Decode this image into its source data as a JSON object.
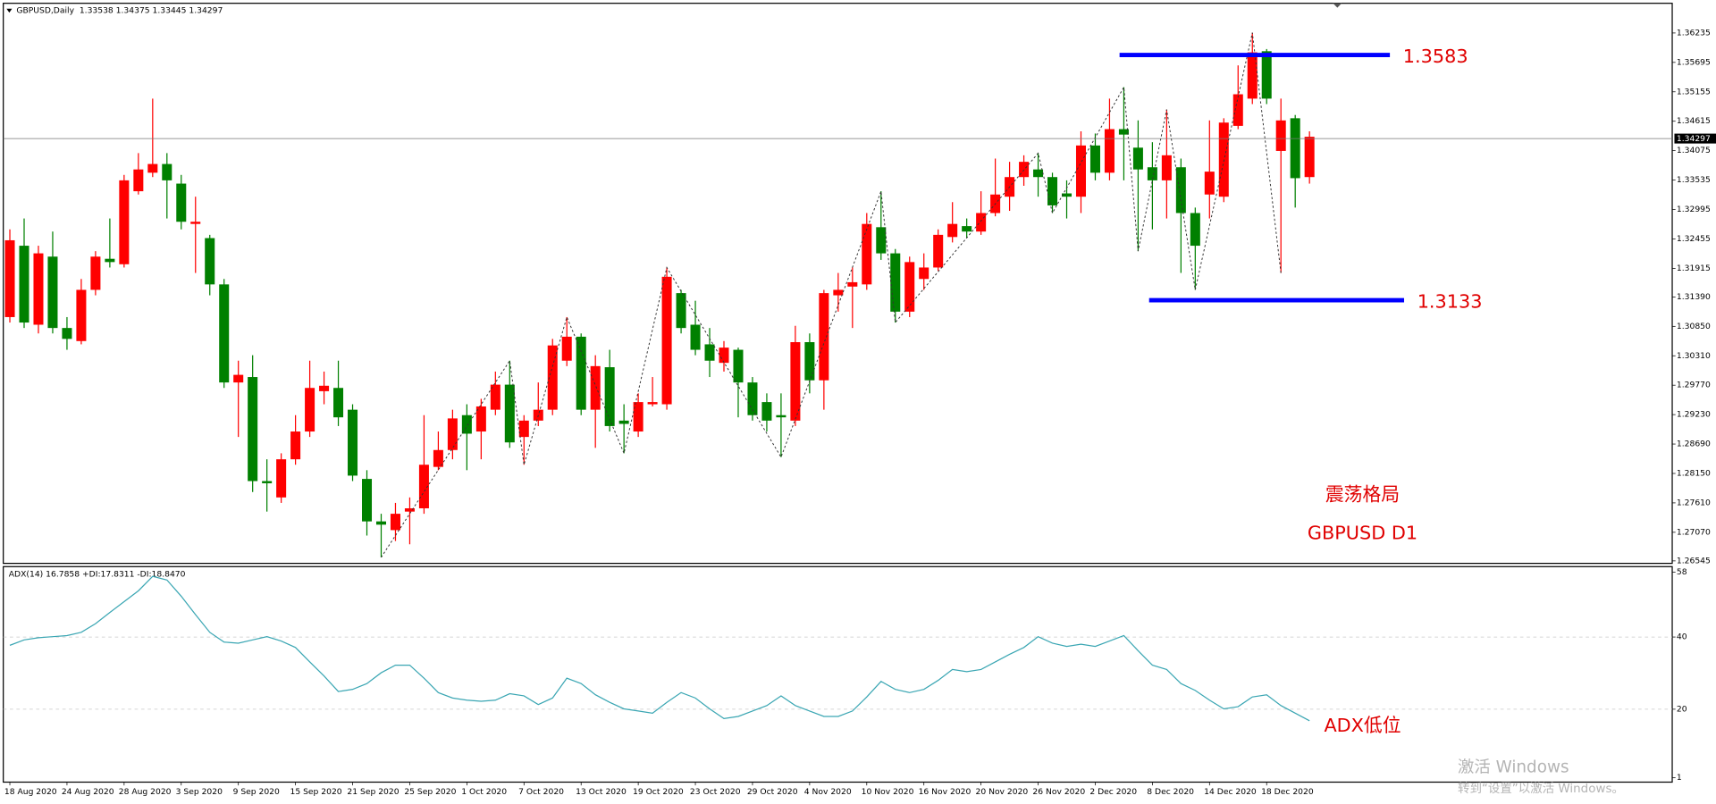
{
  "chart_data": [
    {
      "type": "candlestick",
      "title": "GBPUSD,Daily  1.33538 1.34375 1.33445 1.34297",
      "up_color": "#ff0000",
      "down_color": "#008000",
      "open": [
        1.3102,
        1.3233,
        1.3088,
        1.3213,
        1.3082,
        1.3058,
        1.3152,
        1.3209,
        1.3199,
        1.3333,
        1.3367,
        1.3383,
        1.3347,
        1.3273,
        1.3247,
        1.3162,
        1.2982,
        1.2992,
        1.2801,
        1.2771,
        1.2841,
        1.2892,
        1.2966,
        1.2972,
        1.2932,
        1.2805,
        1.2727,
        1.2711,
        1.2745,
        1.2751,
        1.2827,
        1.2858,
        1.2922,
        1.2892,
        1.2932,
        1.2978,
        1.2882,
        1.2912,
        1.2932,
        1.3022,
        1.3066,
        1.2932,
        1.301,
        1.2912,
        1.2892,
        1.2942,
        1.2942,
        1.3146,
        1.3088,
        1.3052,
        1.3018,
        1.3042,
        1.2982,
        1.2946,
        1.2922,
        1.2912,
        1.3056,
        1.2986,
        1.3142,
        1.3158,
        1.3162,
        1.3267,
        1.3219,
        1.3112,
        1.3172,
        1.3193,
        1.3249,
        1.3269,
        1.3259,
        1.3293,
        1.3323,
        1.3359,
        1.3373,
        1.3359,
        1.3329,
        1.3323,
        1.3417,
        1.3367,
        1.3447,
        1.3413,
        1.3377,
        1.3353,
        1.3377,
        1.3293,
        1.3327,
        1.3323,
        1.3453,
        1.3503,
        1.359,
        1.3407,
        1.3467,
        1.3359
      ],
      "high": [
        1.3263,
        1.3283,
        1.3233,
        1.3259,
        1.3102,
        1.3172,
        1.3223,
        1.3283,
        1.3363,
        1.3403,
        1.3503,
        1.3403,
        1.3363,
        1.3323,
        1.3253,
        1.3172,
        1.3022,
        1.3032,
        1.2841,
        1.2852,
        1.2922,
        1.3022,
        1.3002,
        1.3022,
        1.2942,
        1.2821,
        1.2741,
        1.2761,
        1.2771,
        1.2922,
        1.2892,
        1.2932,
        1.2942,
        1.2952,
        1.3002,
        1.3022,
        1.2922,
        1.2982,
        1.3062,
        1.3102,
        1.3072,
        1.3032,
        1.3042,
        1.2942,
        1.2962,
        1.2992,
        1.3193,
        1.3152,
        1.3132,
        1.3082,
        1.3058,
        1.3046,
        1.2992,
        1.2962,
        1.2962,
        1.3086,
        1.3072,
        1.3152,
        1.3183,
        1.3193,
        1.3293,
        1.3333,
        1.3227,
        1.3213,
        1.3219,
        1.3263,
        1.3313,
        1.3283,
        1.3333,
        1.3393,
        1.3387,
        1.3399,
        1.3403,
        1.3367,
        1.3353,
        1.3443,
        1.3439,
        1.3503,
        1.3524,
        1.3463,
        1.3423,
        1.3483,
        1.3393,
        1.3303,
        1.3463,
        1.3467,
        1.3564,
        1.3624,
        1.3594,
        1.3503,
        1.3473,
        1.3443
      ],
      "low": [
        1.3092,
        1.3082,
        1.3072,
        1.3072,
        1.3042,
        1.3052,
        1.3142,
        1.3193,
        1.3193,
        1.3327,
        1.3359,
        1.3283,
        1.3263,
        1.3183,
        1.3142,
        1.2972,
        1.2882,
        1.2781,
        1.2745,
        1.2761,
        1.2831,
        1.2882,
        1.2942,
        1.2902,
        1.2801,
        1.2701,
        1.2661,
        1.2691,
        1.2685,
        1.2741,
        1.2821,
        1.2841,
        1.2821,
        1.2841,
        1.2922,
        1.2862,
        1.2831,
        1.2902,
        1.2922,
        1.3012,
        1.2922,
        1.2862,
        1.2892,
        1.2852,
        1.2882,
        1.2938,
        1.2932,
        1.3072,
        1.3032,
        1.2992,
        1.3002,
        1.2918,
        1.2912,
        1.2892,
        1.2845,
        1.2902,
        1.2962,
        1.2932,
        1.3112,
        1.3082,
        1.3152,
        1.3207,
        1.3092,
        1.3102,
        1.3152,
        1.3187,
        1.3239,
        1.3247,
        1.3253,
        1.3287,
        1.3297,
        1.3343,
        1.3323,
        1.3293,
        1.3283,
        1.3293,
        1.3353,
        1.3353,
        1.3353,
        1.3223,
        1.3263,
        1.3283,
        1.3183,
        1.3152,
        1.3283,
        1.3313,
        1.3447,
        1.3493,
        1.3493,
        1.3183,
        1.3303,
        1.3347
      ],
      "close": [
        1.3243,
        1.3092,
        1.3219,
        1.3082,
        1.3062,
        1.3152,
        1.3213,
        1.3203,
        1.3353,
        1.3373,
        1.3383,
        1.3353,
        1.3277,
        1.3277,
        1.3162,
        1.2982,
        1.2996,
        1.2801,
        1.2797,
        1.2841,
        1.2892,
        1.2972,
        1.2976,
        1.2918,
        1.2811,
        1.2727,
        1.2721,
        1.2741,
        1.2751,
        1.2831,
        1.2858,
        1.2916,
        1.2888,
        1.2938,
        1.2978,
        1.2872,
        1.2912,
        1.2932,
        1.305,
        1.3066,
        1.2932,
        1.3012,
        1.2902,
        1.2906,
        1.2946,
        1.2946,
        1.3176,
        1.3082,
        1.3042,
        1.3022,
        1.3046,
        1.2982,
        1.2922,
        1.2912,
        1.2918,
        1.3056,
        1.2986,
        1.3146,
        1.3152,
        1.3166,
        1.3273,
        1.3219,
        1.3112,
        1.3203,
        1.3193,
        1.3253,
        1.3273,
        1.3259,
        1.3293,
        1.3327,
        1.3359,
        1.3387,
        1.3359,
        1.3307,
        1.3323,
        1.3417,
        1.3367,
        1.3447,
        1.3437,
        1.3373,
        1.3353,
        1.3399,
        1.3293,
        1.3233,
        1.3369,
        1.3459,
        1.3511,
        1.3588,
        1.3503,
        1.3463,
        1.3357,
        1.3433
      ],
      "last_price": 1.34297,
      "levels": [
        1.3583,
        1.3133
      ],
      "level_color": "#0000ff",
      "annotations": [
        "震荡格局",
        "GBPUSD D1"
      ],
      "ylim": [
        1.265,
        1.3678
      ],
      "yticks": [
        1.36235,
        1.35695,
        1.35155,
        1.34615,
        1.34075,
        1.33535,
        1.32995,
        1.32455,
        1.31915,
        {
          "value": 1.3139,
          "label": "1.31390"
        },
        {
          "value": 1.3085,
          "label": "1.30850"
        },
        {
          "value": 1.3031,
          "label": "1.30310"
        },
        {
          "value": 1.2977,
          "label": "1.29770"
        },
        {
          "value": 1.2923,
          "label": "1.29230"
        },
        {
          "value": 1.2869,
          "label": "1.28690"
        },
        {
          "value": 1.2815,
          "label": "1.28150"
        },
        {
          "value": 1.2761,
          "label": "1.27610"
        },
        {
          "value": 1.2707,
          "label": "1.27070"
        },
        1.26545
      ]
    },
    {
      "type": "line",
      "title": "ADX(14) 16.7858 +DI:17.8311 -DI:18.8470",
      "categories": [
        "18 Aug 2020",
        null,
        null,
        null,
        "24 Aug 2020",
        null,
        null,
        null,
        "28 Aug 2020",
        null,
        null,
        null,
        "3 Sep 2020",
        null,
        null,
        null,
        "9 Sep 2020",
        null,
        null,
        null,
        "15 Sep 2020",
        null,
        null,
        null,
        "21 Sep 2020",
        null,
        null,
        null,
        "25 Sep 2020",
        null,
        null,
        null,
        "1 Oct 2020",
        null,
        null,
        null,
        "7 Oct 2020",
        null,
        null,
        null,
        "13 Oct 2020",
        null,
        null,
        null,
        "19 Oct 2020",
        null,
        null,
        null,
        "23 Oct 2020",
        null,
        null,
        null,
        "29 Oct 2020",
        null,
        null,
        null,
        "4 Nov 2020",
        null,
        null,
        null,
        "10 Nov 2020",
        null,
        null,
        null,
        "16 Nov 2020",
        null,
        null,
        null,
        "20 Nov 2020",
        null,
        null,
        null,
        "26 Nov 2020",
        null,
        null,
        null,
        "2 Dec 2020",
        null,
        null,
        null,
        "8 Dec 2020",
        null,
        null,
        null,
        "14 Dec 2020",
        null,
        null,
        null,
        "18 Dec 2020",
        null,
        null,
        null
      ],
      "series": [
        {
          "name": "ADX",
          "color": "#3aa6b3",
          "values": [
            37.7,
            39.2,
            39.8,
            40.1,
            40.4,
            41.3,
            43.7,
            46.8,
            49.8,
            52.8,
            56.8,
            55.8,
            51.3,
            46.2,
            41.3,
            38.6,
            38.3,
            39.2,
            40.1,
            38.9,
            37.1,
            33.1,
            29.2,
            24.9,
            25.5,
            27.1,
            30.1,
            32.2,
            32.2,
            28.6,
            24.6,
            23.1,
            22.5,
            22.2,
            22.5,
            24.3,
            23.7,
            21.3,
            23.1,
            28.6,
            27.1,
            24.0,
            21.9,
            20.1,
            19.5,
            18.9,
            21.9,
            24.6,
            23.1,
            20.1,
            17.4,
            18.0,
            19.5,
            21.0,
            23.7,
            21.0,
            19.5,
            18.0,
            18.0,
            19.5,
            23.4,
            27.7,
            25.5,
            24.6,
            25.5,
            28.0,
            31.0,
            30.4,
            31.0,
            33.1,
            35.2,
            37.1,
            40.1,
            38.3,
            37.4,
            38.0,
            37.4,
            38.9,
            40.4,
            36.2,
            32.2,
            31.0,
            27.1,
            25.2,
            22.5,
            20.1,
            20.7,
            23.4,
            24.0,
            21.0,
            18.9,
            16.8
          ]
        }
      ],
      "annotations": [
        "ADX低位"
      ],
      "grid": true,
      "ylim": [
        -0.2,
        59.5
      ],
      "yticks": [
        58,
        40,
        20,
        1
      ]
    }
  ],
  "watermark": {
    "title": "激活 Windows",
    "subtitle": "转到“设置”以激活 Windows。"
  }
}
